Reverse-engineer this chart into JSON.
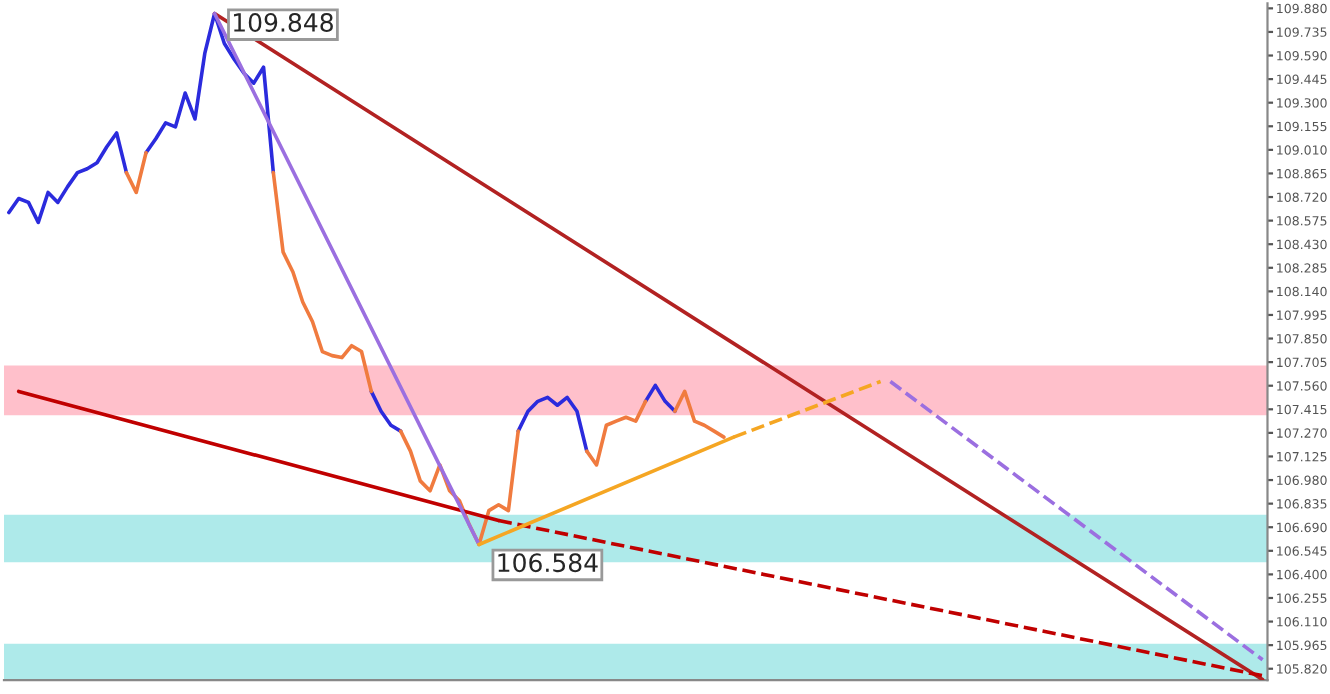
{
  "chart_data": {
    "type": "line",
    "categories": [
      null,
      null,
      null,
      null,
      null,
      null,
      null,
      null,
      null,
      null,
      null,
      null,
      null,
      null,
      null,
      null,
      null,
      null,
      null,
      null,
      null,
      null,
      null,
      null,
      null,
      null,
      null,
      null,
      null,
      null,
      null,
      null,
      null,
      null,
      null,
      null,
      null,
      null,
      null,
      null,
      null,
      null,
      null,
      null,
      null,
      null,
      null,
      null,
      null,
      null,
      null,
      null,
      null,
      null,
      null,
      null,
      null,
      null,
      null,
      null,
      null,
      null,
      null,
      null,
      null,
      null,
      null,
      null,
      null,
      null,
      null,
      null,
      null,
      null,
      null,
      null,
      null,
      null,
      null,
      null,
      null,
      null,
      null,
      null,
      null,
      null,
      null,
      null,
      null,
      null,
      null,
      null,
      null,
      null,
      null,
      null,
      null,
      null,
      null,
      null,
      null,
      null,
      null,
      null,
      null,
      null,
      null,
      null,
      null,
      null,
      null,
      null,
      null,
      null,
      null,
      null,
      null,
      null,
      null,
      null,
      null,
      null,
      null,
      null,
      null,
      null,
      null,
      null,
      null
    ],
    "ylim": [
      105.75,
      109.91
    ],
    "grid": false,
    "legend": false,
    "yticks": [
      {
        "value": 109.88,
        "label": "109.880"
      },
      109.735,
      {
        "value": 109.59,
        "label": "109.590"
      },
      109.445,
      {
        "value": 109.3,
        "label": "109.300"
      },
      109.155,
      {
        "value": 109.01,
        "label": "109.010"
      },
      108.865,
      {
        "value": 108.72,
        "label": "108.720"
      },
      108.575,
      {
        "value": 108.43,
        "label": "108.430"
      },
      108.285,
      {
        "value": 108.14,
        "label": "108.140"
      },
      107.995,
      {
        "value": 107.85,
        "label": "107.850"
      },
      107.705,
      {
        "value": 107.56,
        "label": "107.560"
      },
      107.415,
      {
        "value": 107.27,
        "label": "107.270"
      },
      107.125,
      {
        "value": 106.98,
        "label": "106.980"
      },
      106.835,
      {
        "value": 106.69,
        "label": "106.690"
      },
      106.545,
      {
        "value": 106.4,
        "label": "106.400"
      },
      106.255,
      {
        "value": 106.11,
        "label": "106.110"
      },
      105.965,
      {
        "value": 105.82,
        "label": "105.820"
      }
    ],
    "series": [
      {
        "color": "#2b2bdd",
        "values": [
          108.625,
          108.711,
          108.687,
          108.564,
          108.748,
          108.687,
          108.784,
          108.87,
          108.894,
          108.931,
          109.029,
          109.114,
          108.87,
          null,
          108.992,
          109.078,
          109.176,
          109.151,
          109.359,
          109.2,
          109.603,
          109.848,
          109.664,
          109.567,
          109.481,
          109.42,
          109.518,
          108.87,
          null,
          null,
          null,
          null,
          null,
          null,
          null,
          null,
          null,
          107.525,
          107.403,
          107.317,
          107.281,
          null,
          null,
          null,
          null,
          null,
          null,
          null,
          null,
          null,
          null,
          null,
          107.281,
          107.403,
          107.464,
          107.488,
          107.44,
          107.488,
          107.403,
          107.158,
          null,
          null,
          null,
          null,
          null,
          107.464,
          107.562,
          107.464,
          107.403,
          null,
          null,
          null,
          null,
          null,
          null,
          null,
          null,
          null,
          null,
          null,
          null,
          null,
          null,
          null,
          null,
          null,
          null,
          null,
          null,
          null,
          null,
          null,
          null,
          null,
          null,
          null,
          null,
          null,
          null,
          null,
          null,
          null,
          null,
          null,
          null,
          null,
          null,
          null,
          null,
          null,
          null,
          null,
          null,
          null,
          null,
          null,
          null,
          null,
          null,
          null,
          null,
          null,
          null,
          null,
          null,
          null,
          null,
          null,
          null
        ]
      },
      {
        "color": "#f07b3f",
        "values": [
          null,
          null,
          null,
          null,
          null,
          null,
          null,
          null,
          null,
          null,
          null,
          null,
          108.87,
          108.748,
          108.992,
          null,
          null,
          null,
          null,
          null,
          null,
          null,
          null,
          null,
          null,
          null,
          null,
          108.87,
          108.381,
          108.259,
          108.075,
          107.953,
          107.77,
          107.745,
          107.733,
          107.806,
          107.77,
          107.525,
          null,
          null,
          107.281,
          107.158,
          106.975,
          106.914,
          107.073,
          106.914,
          106.853,
          106.706,
          106.584,
          106.792,
          106.828,
          106.792,
          107.281,
          null,
          null,
          null,
          null,
          null,
          null,
          107.158,
          107.073,
          107.317,
          107.342,
          107.366,
          107.342,
          107.464,
          null,
          null,
          107.403,
          107.525,
          107.342,
          107.317,
          107.281,
          107.244,
          null,
          null,
          null,
          null,
          null,
          null,
          null,
          null,
          null,
          null,
          null,
          null,
          null,
          null,
          null,
          null,
          null,
          null,
          null,
          null,
          null,
          null,
          null,
          null,
          null,
          null,
          null,
          null,
          null,
          null,
          null,
          null,
          null,
          null,
          null,
          null,
          null,
          null,
          null,
          null,
          null,
          null,
          null,
          null,
          null,
          null,
          null,
          null,
          null,
          null,
          null,
          null,
          null,
          null,
          null
        ]
      },
      {
        "color": "#b22222",
        "line_style": "solid",
        "values": [
          null,
          null,
          null,
          null,
          null,
          null,
          null,
          null,
          null,
          null,
          null,
          null,
          null,
          null,
          null,
          null,
          null,
          null,
          null,
          null,
          null,
          109.848,
          null,
          null,
          null,
          null,
          null,
          null,
          null,
          null,
          null,
          null,
          null,
          null,
          null,
          null,
          null,
          null,
          null,
          null,
          null,
          null,
          null,
          null,
          null,
          null,
          null,
          null,
          null,
          null,
          null,
          null,
          null,
          null,
          null,
          null,
          null,
          null,
          null,
          null,
          null,
          null,
          null,
          null,
          null,
          null,
          null,
          null,
          null,
          null,
          null,
          null,
          null,
          null,
          null,
          null,
          null,
          null,
          null,
          null,
          null,
          null,
          null,
          null,
          null,
          null,
          null,
          null,
          null,
          null,
          null,
          null,
          null,
          null,
          null,
          null,
          null,
          null,
          null,
          null,
          null,
          null,
          null,
          null,
          null,
          null,
          null,
          null,
          null,
          null,
          null,
          null,
          null,
          null,
          null,
          null,
          null,
          null,
          null,
          null,
          null,
          null,
          null,
          null,
          null,
          null,
          null,
          null,
          105.753
        ]
      },
      {
        "color": "#c00000",
        "line_style": "solid",
        "values": [
          null,
          107.525,
          null,
          null,
          null,
          null,
          null,
          null,
          null,
          null,
          null,
          null,
          null,
          null,
          null,
          null,
          null,
          null,
          null,
          null,
          null,
          null,
          null,
          null,
          null,
          null,
          null,
          null,
          null,
          null,
          null,
          null,
          null,
          null,
          null,
          null,
          null,
          null,
          null,
          null,
          null,
          null,
          null,
          null,
          null,
          null,
          null,
          null,
          null,
          null,
          106.731,
          null,
          null,
          null,
          null,
          null,
          null,
          null,
          null,
          null,
          null,
          null,
          null,
          null,
          null,
          null,
          null,
          null,
          null,
          null,
          null,
          null,
          null,
          null,
          null,
          null,
          null,
          null,
          null,
          null,
          null,
          null,
          null,
          null,
          null,
          null,
          null,
          null,
          null,
          null,
          null,
          null,
          null,
          null,
          null,
          null,
          null,
          null,
          null,
          null,
          null,
          null,
          null,
          null,
          null,
          null,
          null,
          null,
          null,
          null,
          null,
          null,
          null,
          null,
          null,
          null,
          null,
          null,
          null,
          null,
          null,
          null,
          null,
          null,
          null,
          null,
          null,
          null,
          null
        ]
      },
      {
        "color": "#c00000",
        "line_style": "dashed",
        "values": [
          null,
          null,
          null,
          null,
          null,
          null,
          null,
          null,
          null,
          null,
          null,
          null,
          null,
          null,
          null,
          null,
          null,
          null,
          null,
          null,
          null,
          null,
          null,
          null,
          null,
          null,
          null,
          null,
          null,
          null,
          null,
          null,
          null,
          null,
          null,
          null,
          null,
          null,
          null,
          null,
          null,
          null,
          null,
          null,
          null,
          null,
          null,
          null,
          null,
          null,
          106.731,
          null,
          null,
          null,
          null,
          null,
          null,
          null,
          null,
          null,
          null,
          null,
          null,
          null,
          null,
          null,
          null,
          null,
          null,
          null,
          null,
          null,
          null,
          null,
          null,
          null,
          null,
          null,
          null,
          null,
          null,
          null,
          null,
          null,
          null,
          null,
          null,
          null,
          null,
          null,
          null,
          null,
          null,
          null,
          null,
          null,
          null,
          null,
          null,
          null,
          null,
          null,
          null,
          null,
          null,
          null,
          null,
          null,
          null,
          null,
          null,
          null,
          null,
          null,
          null,
          null,
          null,
          null,
          null,
          null,
          null,
          null,
          null,
          null,
          null,
          null,
          null,
          null,
          105.777
        ]
      },
      {
        "color": "#9b6fe0",
        "line_style": "solid",
        "values": [
          null,
          null,
          null,
          null,
          null,
          null,
          null,
          null,
          null,
          null,
          null,
          null,
          null,
          null,
          null,
          null,
          null,
          null,
          null,
          null,
          null,
          109.848,
          null,
          null,
          null,
          null,
          null,
          null,
          null,
          null,
          null,
          null,
          null,
          null,
          null,
          null,
          null,
          null,
          null,
          null,
          null,
          null,
          null,
          null,
          null,
          null,
          null,
          null,
          106.584,
          null,
          null,
          null,
          null,
          null,
          null,
          null,
          null,
          null,
          null,
          null,
          null,
          null,
          null,
          null,
          null,
          null,
          null,
          null,
          null,
          null,
          null,
          null,
          null,
          null,
          null,
          null,
          null,
          null,
          null,
          null,
          null,
          null,
          null,
          null,
          null,
          null,
          null,
          null,
          null,
          null,
          null,
          null,
          null,
          null,
          null,
          null,
          null,
          null,
          null,
          null,
          null,
          null,
          null,
          null,
          null,
          null,
          null,
          null,
          null,
          null,
          null,
          null,
          null,
          null,
          null,
          null,
          null,
          null,
          null,
          null,
          null,
          null,
          null,
          null,
          null,
          null,
          null,
          null,
          null
        ]
      },
      {
        "color": "#9b6fe0",
        "line_style": "dashed",
        "values": [
          null,
          null,
          null,
          null,
          null,
          null,
          null,
          null,
          null,
          null,
          null,
          null,
          null,
          null,
          null,
          null,
          null,
          null,
          null,
          null,
          null,
          null,
          null,
          null,
          null,
          null,
          null,
          null,
          null,
          null,
          null,
          null,
          null,
          null,
          null,
          null,
          null,
          null,
          null,
          null,
          null,
          null,
          null,
          null,
          null,
          null,
          null,
          null,
          null,
          null,
          null,
          null,
          null,
          null,
          null,
          null,
          null,
          null,
          null,
          null,
          null,
          null,
          null,
          null,
          null,
          null,
          null,
          null,
          null,
          null,
          null,
          null,
          null,
          null,
          null,
          null,
          null,
          null,
          null,
          null,
          null,
          null,
          null,
          null,
          null,
          null,
          null,
          null,
          null,
          null,
          107.586,
          null,
          null,
          null,
          null,
          null,
          null,
          null,
          null,
          null,
          null,
          null,
          null,
          null,
          null,
          null,
          null,
          null,
          null,
          null,
          null,
          null,
          null,
          null,
          null,
          null,
          null,
          null,
          null,
          null,
          null,
          null,
          null,
          null,
          null,
          null,
          null,
          null,
          105.875
        ]
      },
      {
        "color": "#f5a623",
        "line_style": "solid",
        "values": [
          null,
          null,
          null,
          null,
          null,
          null,
          null,
          null,
          null,
          null,
          null,
          null,
          null,
          null,
          null,
          null,
          null,
          null,
          null,
          null,
          null,
          null,
          null,
          null,
          null,
          null,
          null,
          null,
          null,
          null,
          null,
          null,
          null,
          null,
          null,
          null,
          null,
          null,
          null,
          null,
          null,
          null,
          null,
          null,
          null,
          null,
          null,
          null,
          106.584,
          null,
          null,
          null,
          null,
          null,
          null,
          null,
          null,
          null,
          null,
          null,
          null,
          null,
          null,
          null,
          null,
          null,
          null,
          null,
          null,
          null,
          null,
          null,
          null,
          null,
          107.244,
          null,
          null,
          null,
          null,
          null,
          null,
          null,
          null,
          null,
          null,
          null,
          null,
          null,
          null,
          null,
          null,
          null,
          null,
          null,
          null,
          null,
          null,
          null,
          null,
          null,
          null,
          null,
          null,
          null,
          null,
          null,
          null,
          null,
          null,
          null,
          null,
          null,
          null,
          null,
          null,
          null,
          null,
          null,
          null,
          null,
          null,
          null,
          null,
          null,
          null,
          null,
          null,
          null,
          null
        ]
      },
      {
        "color": "#f5a623",
        "line_style": "dashed",
        "values": [
          null,
          null,
          null,
          null,
          null,
          null,
          null,
          null,
          null,
          null,
          null,
          null,
          null,
          null,
          null,
          null,
          null,
          null,
          null,
          null,
          null,
          null,
          null,
          null,
          null,
          null,
          null,
          null,
          null,
          null,
          null,
          null,
          null,
          null,
          null,
          null,
          null,
          null,
          null,
          null,
          null,
          null,
          null,
          null,
          null,
          null,
          null,
          null,
          null,
          null,
          null,
          null,
          null,
          null,
          null,
          null,
          null,
          null,
          null,
          null,
          null,
          null,
          null,
          null,
          null,
          null,
          null,
          null,
          null,
          null,
          null,
          null,
          null,
          null,
          107.244,
          null,
          null,
          null,
          null,
          null,
          null,
          null,
          null,
          null,
          null,
          null,
          null,
          null,
          null,
          107.586,
          null,
          null,
          null,
          null,
          null,
          null,
          null,
          null,
          null,
          null,
          null,
          null,
          null,
          null,
          null,
          null,
          null,
          null,
          null,
          null,
          null,
          null,
          null,
          null,
          null,
          null,
          null,
          null,
          null,
          null,
          null,
          null,
          null,
          null,
          null,
          null,
          null,
          null,
          null
        ]
      }
    ],
    "bands": [
      {
        "axis": "y",
        "from": 107.378,
        "to": 107.684,
        "color": "#ffc0cb"
      },
      {
        "axis": "y",
        "from": 106.474,
        "to": 106.767,
        "color": "#aeeaea"
      },
      {
        "axis": "y",
        "from": 105.753,
        "to": 105.973,
        "color": "#aeeaea"
      }
    ],
    "annotations": [
      "109.848",
      "106.584"
    ]
  }
}
